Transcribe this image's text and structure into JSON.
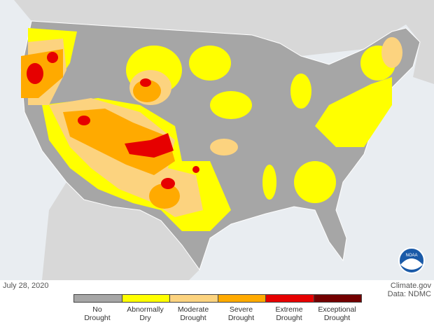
{
  "date": "July 28, 2020",
  "source": "Climate.gov",
  "data_credit": "Data: NDMC",
  "logo": "NOAA",
  "legend": [
    {
      "label": "No Drought",
      "color": "#a6a6a6"
    },
    {
      "label": "Abnormally Dry",
      "color": "#ffff00"
    },
    {
      "label": "Moderate Drought",
      "color": "#fcd37f"
    },
    {
      "label": "Severe Drought",
      "color": "#ffaa00"
    },
    {
      "label": "Extreme Drought",
      "color": "#e60000"
    },
    {
      "label": "Exceptional Drought",
      "color": "#730000"
    }
  ]
}
